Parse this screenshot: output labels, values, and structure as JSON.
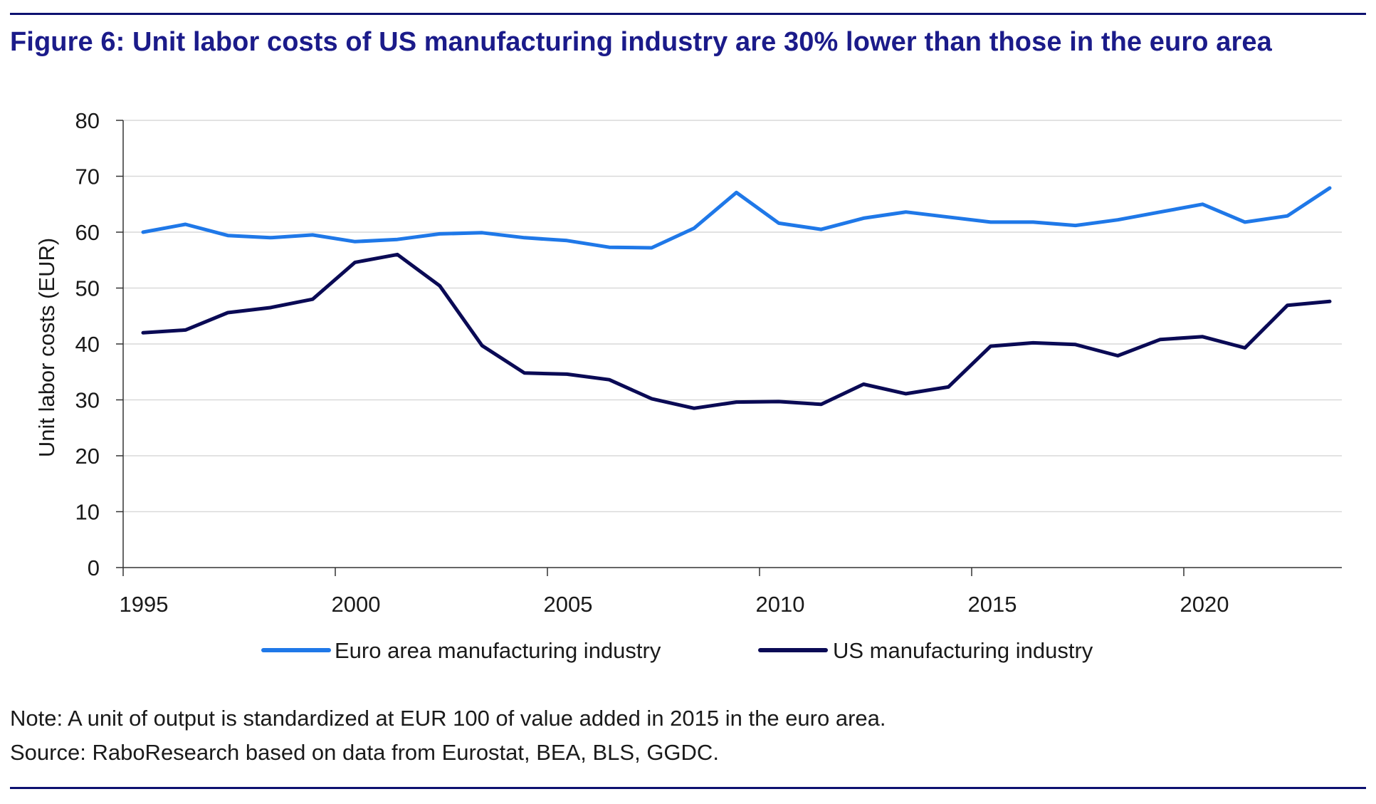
{
  "figure": {
    "title": "Figure 6: Unit labor costs of US manufacturing industry are 30% lower than those in the euro area",
    "note": "Note: A unit of output is standardized at EUR 100 of value added in 2015 in the euro area.",
    "source": "Source: RaboResearch based on data from Eurostat, BEA, BLS, GGDC."
  },
  "colors": {
    "title": "#1b1b8a",
    "rule": "#0d1170",
    "grid": "#d9d9d9",
    "axis": "#333333"
  },
  "chart_data": {
    "type": "line",
    "title": "Figure 6: Unit labor costs of US manufacturing industry are 30% lower than those in the euro area",
    "xlabel": "",
    "ylabel": "Unit labor costs (EUR)",
    "xlim": [
      1995,
      2023
    ],
    "ylim": [
      0,
      80
    ],
    "yticks": [
      0,
      10,
      20,
      30,
      40,
      50,
      60,
      70,
      80
    ],
    "xticks": [
      1995,
      2000,
      2005,
      2010,
      2015,
      2020
    ],
    "grid": "horizontal",
    "legend_position": "bottom",
    "x": [
      1995,
      1996,
      1997,
      1998,
      1999,
      2000,
      2001,
      2002,
      2003,
      2004,
      2005,
      2006,
      2007,
      2008,
      2009,
      2010,
      2011,
      2012,
      2013,
      2014,
      2015,
      2016,
      2017,
      2018,
      2019,
      2020,
      2021,
      2022,
      2023
    ],
    "series": [
      {
        "name": "Euro area manufacturing industry",
        "color": "#1f78e8",
        "values": [
          60.0,
          61.4,
          59.4,
          59.0,
          59.5,
          58.3,
          58.7,
          59.7,
          59.9,
          59.0,
          58.5,
          57.3,
          57.2,
          60.7,
          67.1,
          61.6,
          60.5,
          62.5,
          63.6,
          62.7,
          61.8,
          61.8,
          61.2,
          62.2,
          63.6,
          65.0,
          61.8,
          62.9,
          67.9
        ]
      },
      {
        "name": "US manufacturing industry",
        "color": "#0a0a55",
        "values": [
          42.0,
          42.5,
          45.6,
          46.5,
          48.0,
          54.6,
          56.0,
          50.4,
          39.7,
          34.8,
          34.6,
          33.6,
          30.2,
          28.5,
          29.6,
          29.7,
          29.2,
          32.8,
          31.1,
          32.3,
          39.6,
          40.2,
          39.9,
          37.9,
          40.8,
          41.3,
          39.3,
          46.9,
          47.6
        ]
      }
    ]
  }
}
